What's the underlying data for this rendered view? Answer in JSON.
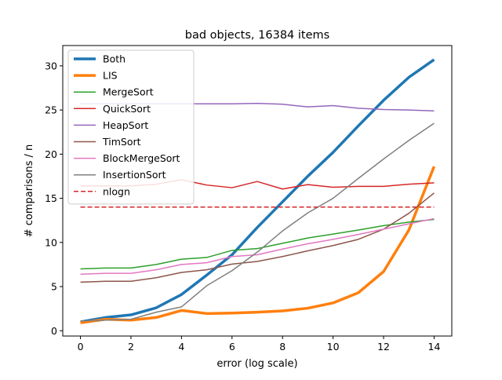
{
  "chart_data": {
    "type": "line",
    "title": "bad objects, 16384 items",
    "xlabel": "error (log scale)",
    "ylabel": "# comparisons / n",
    "xlim": [
      -0.7,
      14.7
    ],
    "ylim": [
      -0.6,
      32.3
    ],
    "xticks": [
      0,
      2,
      4,
      6,
      8,
      10,
      12,
      14
    ],
    "yticks": [
      0,
      5,
      10,
      15,
      20,
      25,
      30
    ],
    "grid": false,
    "legend_position": "top-left",
    "x": [
      0,
      1,
      2,
      3,
      4,
      5,
      6,
      7,
      8,
      9,
      10,
      11,
      12,
      13,
      14
    ],
    "series": [
      {
        "name": "Both",
        "color": "#1f77b4",
        "width": 3.5,
        "dash": "",
        "values": [
          1.0,
          1.5,
          1.8,
          2.6,
          4.1,
          6.3,
          8.6,
          11.7,
          14.6,
          17.5,
          20.2,
          23.2,
          26.1,
          28.7,
          30.7
        ]
      },
      {
        "name": "LIS",
        "color": "#ff7f0e",
        "width": 3.5,
        "dash": "",
        "values": [
          0.9,
          1.3,
          1.2,
          1.5,
          2.3,
          1.95,
          2.0,
          2.1,
          2.25,
          2.55,
          3.15,
          4.3,
          6.7,
          11.4,
          18.6
        ]
      },
      {
        "name": "MergeSort",
        "color": "#2ca02c",
        "width": 1.5,
        "dash": "",
        "values": [
          7.0,
          7.1,
          7.1,
          7.5,
          8.1,
          8.3,
          9.1,
          9.3,
          9.9,
          10.5,
          10.95,
          11.4,
          11.9,
          12.3,
          12.6
        ]
      },
      {
        "name": "QuickSort",
        "color": "#d62728",
        "width": 1.5,
        "dash": "",
        "values": [
          16.4,
          16.4,
          16.4,
          16.6,
          17.1,
          16.5,
          16.2,
          16.9,
          16.05,
          16.55,
          16.25,
          16.35,
          16.35,
          16.6,
          16.75
        ]
      },
      {
        "name": "HeapSort",
        "color": "#9467bd",
        "width": 1.5,
        "dash": "",
        "values": [
          25.7,
          25.7,
          25.7,
          25.7,
          25.7,
          25.7,
          25.7,
          25.75,
          25.65,
          25.35,
          25.5,
          25.2,
          25.05,
          25.0,
          24.9
        ]
      },
      {
        "name": "TimSort",
        "color": "#8c564b",
        "width": 1.5,
        "dash": "",
        "values": [
          5.5,
          5.6,
          5.6,
          6.0,
          6.6,
          6.9,
          7.55,
          7.85,
          8.4,
          9.05,
          9.65,
          10.35,
          11.5,
          13.3,
          15.6
        ]
      },
      {
        "name": "BlockMergeSort",
        "color": "#e377c2",
        "width": 1.5,
        "dash": "",
        "values": [
          6.4,
          6.5,
          6.5,
          6.9,
          7.5,
          7.7,
          8.4,
          8.6,
          9.25,
          9.85,
          10.35,
          10.9,
          11.5,
          12.1,
          12.7
        ]
      },
      {
        "name": "InsertionSort",
        "color": "#7f7f7f",
        "width": 1.5,
        "dash": "",
        "values": [
          1.1,
          1.2,
          1.3,
          2.1,
          2.7,
          5.1,
          6.8,
          8.9,
          11.3,
          13.35,
          15.0,
          17.25,
          19.45,
          21.55,
          23.5
        ]
      },
      {
        "name": "nlogn",
        "color": "#d62728",
        "width": 1.5,
        "dash": "6,3",
        "values": [
          14.0,
          14.0,
          14.0,
          14.0,
          14.0,
          14.0,
          14.0,
          14.0,
          14.0,
          14.0,
          14.0,
          14.0,
          14.0,
          14.0,
          14.0
        ]
      }
    ]
  }
}
